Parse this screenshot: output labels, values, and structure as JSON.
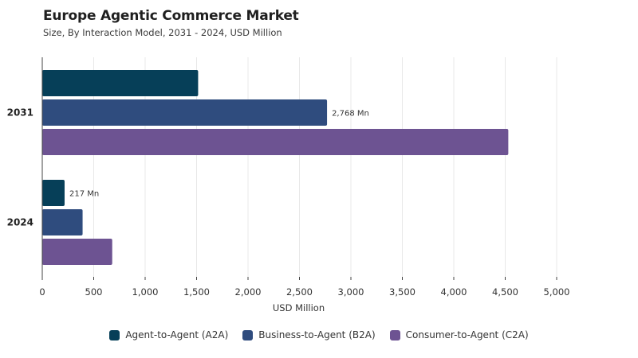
{
  "title": "Europe Agentic Commerce Market",
  "subtitle": "Size, By Interaction Model, 2031 - 2024, USD Million",
  "colors": {
    "a2a": "#063f58",
    "b2a": "#2f4c7e",
    "c2a": "#6d5392",
    "grid": "#e8e8e8",
    "axis": "#444444"
  },
  "chart_data": {
    "type": "bar",
    "orientation": "horizontal",
    "categories": [
      "2031",
      "2024"
    ],
    "series": [
      {
        "name": "Agent-to-Agent (A2A)",
        "values": [
          1515,
          217
        ],
        "color_key": "a2a"
      },
      {
        "name": "Business-to-Agent (B2A)",
        "values": [
          2768,
          392
        ],
        "color_key": "b2a"
      },
      {
        "name": "Consumer-to-Agent (C2A)",
        "values": [
          4530,
          680
        ],
        "color_key": "c2a"
      }
    ],
    "data_labels": [
      {
        "series": 1,
        "category": 0,
        "text": "2,768 Mn"
      },
      {
        "series": 0,
        "category": 1,
        "text": "217 Mn"
      }
    ],
    "xlabel": "USD Million",
    "ylabel": "",
    "xlim": [
      0,
      5000
    ],
    "xticks": [
      0,
      500,
      1000,
      1500,
      2000,
      2500,
      3000,
      3500,
      4000,
      4500,
      5000
    ],
    "xtick_labels": [
      "0",
      "500",
      "1,000",
      "1,500",
      "2,000",
      "2,500",
      "3,000",
      "3,500",
      "4,000",
      "4,500",
      "5,000"
    ],
    "grid": true,
    "legend": "bottom"
  }
}
